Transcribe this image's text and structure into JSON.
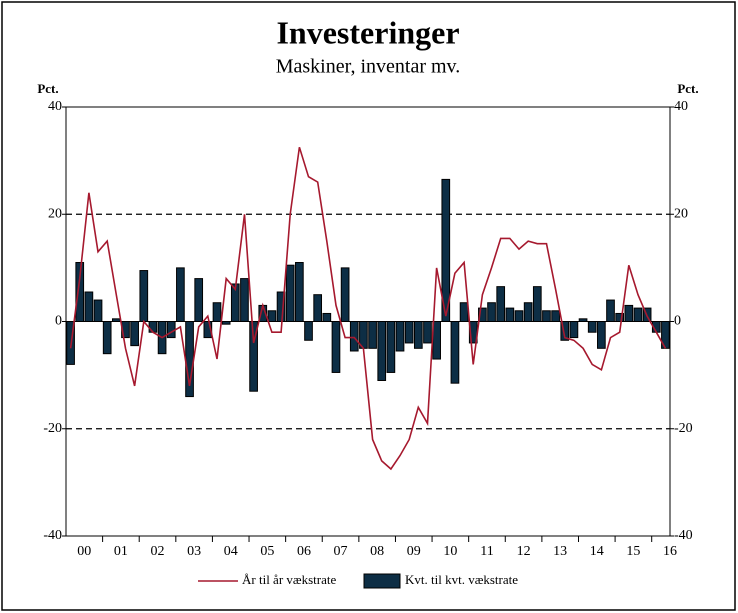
{
  "chart_data": {
    "type": "bar-line",
    "title": "Investeringer",
    "subtitle": "Maskiner, inventar mv.",
    "y_label": "Pct.",
    "y2_label": "Pct.",
    "categories": [
      "00",
      null,
      null,
      null,
      "01",
      null,
      null,
      null,
      "02",
      null,
      null,
      null,
      "03",
      null,
      null,
      null,
      "04",
      null,
      null,
      null,
      "05",
      null,
      null,
      null,
      "06",
      null,
      null,
      null,
      "07",
      null,
      null,
      null,
      "08",
      null,
      null,
      null,
      "09",
      null,
      null,
      null,
      "10",
      null,
      null,
      null,
      "11",
      null,
      null,
      null,
      "12",
      null,
      null,
      null,
      "13",
      null,
      null,
      null,
      "14",
      null,
      null,
      null,
      "15",
      null,
      null,
      null,
      "16",
      null
    ],
    "series": [
      {
        "name": "År til år vækstrate",
        "type": "line",
        "color": "#a6192e",
        "values": [
          -5,
          8,
          24,
          13,
          15,
          5,
          -5,
          -12,
          0,
          -2,
          -3,
          -2,
          -1,
          -12,
          -1,
          1,
          -7,
          8,
          6,
          20,
          -4,
          3,
          -2,
          -2,
          20,
          32.5,
          27,
          26,
          15,
          3,
          -3,
          -3,
          -5,
          -22,
          -26,
          -27.5,
          -25,
          -22,
          -16,
          -19,
          10,
          1,
          9,
          11,
          -8,
          5,
          10,
          15.5,
          15.5,
          13.5,
          15,
          14.5,
          14.5,
          6,
          -3,
          -3.5,
          -5,
          -8,
          -9,
          -3,
          -2,
          10.5,
          5,
          1,
          -2,
          -5
        ]
      },
      {
        "name": "Kvt. til kvt. vækstrate",
        "type": "bar",
        "color": "#0d2e45",
        "values": [
          -8,
          11,
          5.5,
          4,
          -6,
          0.5,
          -3,
          -4.5,
          9.5,
          -2,
          -6,
          -3,
          10,
          -14,
          8,
          -3,
          3.5,
          -0.5,
          7,
          8,
          -13,
          3,
          2,
          5.5,
          10.5,
          11,
          -3.5,
          5,
          1.5,
          -9.5,
          10,
          -5.5,
          -5,
          -5,
          -11,
          -9.5,
          -5.5,
          -4,
          -5,
          -4,
          -7,
          26.5,
          -11.5,
          3.5,
          -4,
          2.5,
          3.5,
          6.5,
          2.5,
          2,
          3.5,
          6.5,
          2,
          2,
          -3.5,
          -3,
          0.5,
          -2,
          -5,
          4,
          1.5,
          3,
          2.5,
          2.5,
          -2,
          -5
        ]
      }
    ],
    "ylim": [
      -40,
      40
    ],
    "yticks": [
      -40,
      -20,
      0,
      20,
      40
    ],
    "y2lim": [
      -40,
      40
    ],
    "y2ticks": [
      -40,
      -20,
      0,
      20,
      40
    ],
    "grid": true,
    "legend": "bottom"
  }
}
